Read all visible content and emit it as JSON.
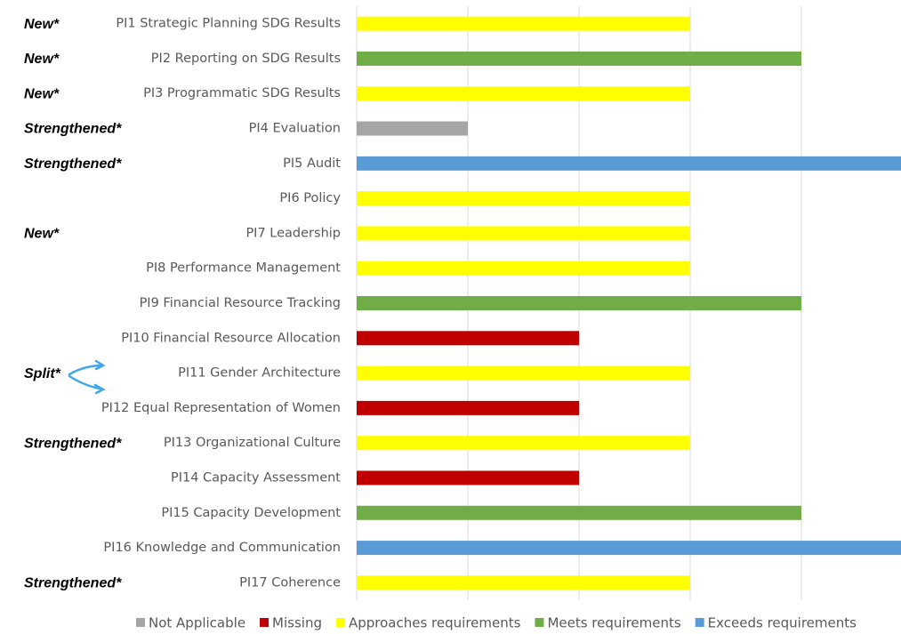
{
  "chart_data": {
    "type": "bar",
    "orientation": "horizontal",
    "categories": [
      "PI1 Strategic Planning SDG Results",
      "PI2 Reporting on SDG Results",
      "PI3 Programmatic SDG Results",
      "PI4 Evaluation",
      "PI5 Audit",
      "PI6 Policy",
      "PI7 Leadership",
      "PI8 Performance Management",
      "PI9 Financial Resource Tracking",
      "PI10 Financial Resource Allocation",
      "PI11 Gender Architecture",
      "PI12 Equal Representation of Women",
      "PI13 Organizational Culture",
      "PI14 Capacity Assessment",
      "PI15 Capacity Development",
      "PI16 Knowledge and Communication",
      "PI17 Coherence"
    ],
    "annotations": [
      "New*",
      "New*",
      "New*",
      "Strengthened*",
      "Strengthened*",
      null,
      "New*",
      null,
      null,
      null,
      "Split*",
      null,
      "Strengthened*",
      null,
      null,
      null,
      "Strengthened*"
    ],
    "series": [
      {
        "name": "Not Applicable",
        "color": "#a5a5a5",
        "values": [
          null,
          null,
          null,
          1,
          null,
          null,
          null,
          null,
          null,
          null,
          null,
          null,
          null,
          null,
          null,
          null,
          null
        ]
      },
      {
        "name": "Missing",
        "color": "#c00000",
        "values": [
          null,
          null,
          null,
          null,
          null,
          null,
          null,
          null,
          null,
          2,
          null,
          2,
          null,
          2,
          null,
          null,
          null
        ]
      },
      {
        "name": "Approaches requirements",
        "color": "#ffff00",
        "values": [
          3,
          null,
          3,
          null,
          null,
          3,
          3,
          3,
          null,
          null,
          3,
          null,
          3,
          null,
          null,
          null,
          3
        ]
      },
      {
        "name": "Meets requirements",
        "color": "#70ad47",
        "values": [
          null,
          4,
          null,
          null,
          null,
          null,
          null,
          null,
          4,
          null,
          null,
          null,
          null,
          null,
          4,
          null,
          null
        ]
      },
      {
        "name": "Exceeds requirements",
        "color": "#5b9bd5",
        "values": [
          null,
          null,
          null,
          null,
          5,
          null,
          null,
          null,
          null,
          null,
          null,
          null,
          null,
          null,
          null,
          5,
          null
        ]
      }
    ],
    "xlim": [
      0,
      5
    ],
    "xticks": [
      0,
      1,
      2,
      3,
      4,
      5
    ],
    "grid": true,
    "legend": "bottom"
  }
}
